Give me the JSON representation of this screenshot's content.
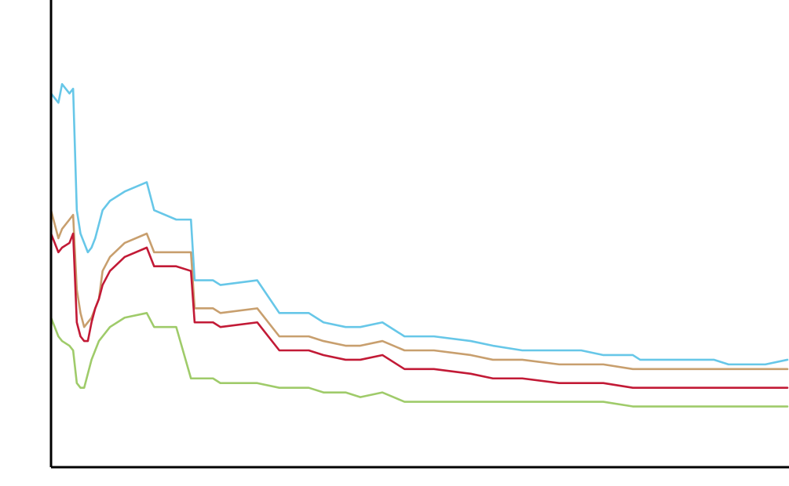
{
  "chart_data": {
    "type": "line",
    "title": "",
    "xlabel": "",
    "ylabel": "",
    "grid": false,
    "legend": "none",
    "xlim": [
      0,
      100
    ],
    "ylim": [
      0,
      100
    ],
    "x": [
      0,
      1,
      1.5,
      2.5,
      3,
      3.5,
      4,
      4.5,
      5,
      5.5,
      6,
      6.5,
      7,
      8,
      10,
      13,
      14,
      17,
      19,
      19.5,
      22,
      23,
      28,
      31,
      35,
      37,
      40,
      42,
      45,
      48,
      52,
      57,
      60,
      64,
      69,
      72,
      75,
      79,
      80,
      83,
      85,
      90,
      92,
      97,
      100
    ],
    "series": [
      {
        "color": "#67C7E8",
        "values": [
          80,
          78,
          82,
          80,
          81,
          55,
          50,
          48,
          46,
          47,
          49,
          52,
          55,
          57,
          59,
          61,
          55,
          53,
          53,
          40,
          40,
          39,
          40,
          33,
          33,
          31,
          30,
          30,
          31,
          28,
          28,
          27,
          26,
          25,
          25,
          25,
          24,
          24,
          23,
          23,
          23,
          23,
          22,
          22,
          23
        ]
      },
      {
        "color": "#C89F6E",
        "values": [
          55,
          49,
          51,
          53,
          54,
          38,
          33,
          30,
          31,
          32,
          34,
          36,
          42,
          45,
          48,
          50,
          46,
          46,
          46,
          34,
          34,
          33,
          34,
          28,
          28,
          27,
          26,
          26,
          27,
          25,
          25,
          24,
          23,
          23,
          22,
          22,
          22,
          21,
          21,
          21,
          21,
          21,
          21,
          21,
          21
        ]
      },
      {
        "color": "#C21A36",
        "values": [
          50,
          46,
          47,
          48,
          50,
          31,
          28,
          27,
          27,
          31,
          34,
          36,
          39,
          42,
          45,
          47,
          43,
          43,
          42,
          31,
          31,
          30,
          31,
          25,
          25,
          24,
          23,
          23,
          24,
          21,
          21,
          20,
          19,
          19,
          18,
          18,
          18,
          17,
          17,
          17,
          17,
          17,
          17,
          17,
          17
        ]
      },
      {
        "color": "#9FCB6A",
        "values": [
          32,
          28,
          27,
          26,
          25,
          18,
          17,
          17,
          20,
          23,
          25,
          27,
          28,
          30,
          32,
          33,
          30,
          30,
          19,
          19,
          19,
          18,
          18,
          17,
          17,
          16,
          16,
          15,
          16,
          14,
          14,
          14,
          14,
          14,
          14,
          14,
          14,
          13,
          13,
          13,
          13,
          13,
          13,
          13,
          13
        ]
      }
    ]
  }
}
